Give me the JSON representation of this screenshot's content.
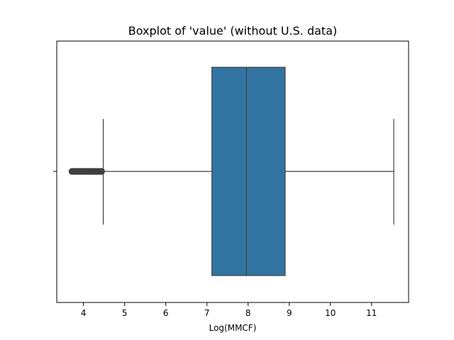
{
  "chart_data": {
    "type": "boxplot",
    "orientation": "horizontal",
    "title": "Boxplot of 'value' (without U.S. data)",
    "xlabel": "Log(MMCF)",
    "ylabel": "",
    "xlim": [
      3.35,
      11.9
    ],
    "xticks": [
      4,
      5,
      6,
      7,
      8,
      9,
      10,
      11
    ],
    "xtick_labels": [
      "4",
      "5",
      "6",
      "7",
      "8",
      "9",
      "10",
      "11"
    ],
    "grid": false,
    "legend": "none",
    "box": {
      "whisker_low": 4.48,
      "q1": 7.12,
      "median": 7.96,
      "q3": 8.9,
      "whisker_high": 11.54
    },
    "outliers": [
      3.72,
      3.76,
      3.8,
      3.84,
      3.88,
      3.92,
      3.96,
      4.0,
      4.04,
      4.08,
      4.12,
      4.16,
      4.2,
      4.24,
      4.28,
      4.32,
      4.36,
      4.4,
      4.44
    ],
    "colors": {
      "box_fill": "#3274a1",
      "line": "#3f3f3f",
      "outlier": "#3f3f3f"
    }
  }
}
